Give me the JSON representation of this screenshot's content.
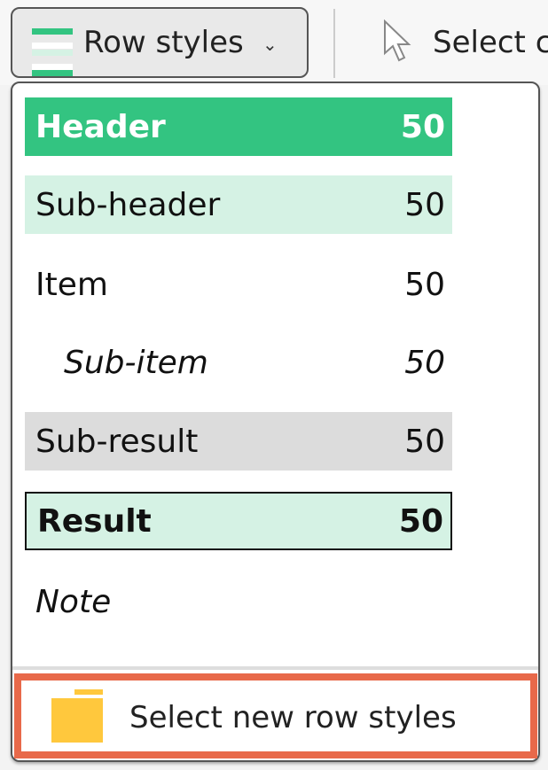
{
  "toolbar": {
    "row_styles_label": "Row styles",
    "select_label": "Select c"
  },
  "menu": {
    "items": [
      {
        "label": "Header",
        "value": "50"
      },
      {
        "label": "Sub-header",
        "value": "50"
      },
      {
        "label": "Item",
        "value": "50"
      },
      {
        "label": "Sub-item",
        "value": "50"
      },
      {
        "label": "Sub-result",
        "value": "50"
      },
      {
        "label": "Result",
        "value": "50"
      },
      {
        "label": "Note"
      }
    ],
    "footer_label": "Select new row styles"
  },
  "colors": {
    "header": "#33c481",
    "sub_header": "#d5f2e4",
    "sub_result": "#dcdcdc",
    "highlight": "#e8694a",
    "folder": "#ffc83d"
  }
}
